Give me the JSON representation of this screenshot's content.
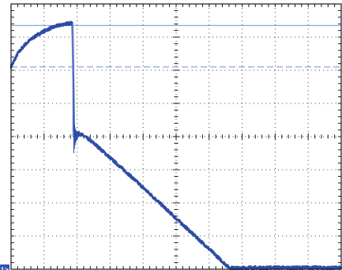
{
  "chart_data": {
    "type": "line",
    "title": "",
    "xlabel": "",
    "ylabel": "",
    "grid": true,
    "x_divisions": 10,
    "y_divisions": 8,
    "xlim": [
      0,
      10
    ],
    "ylim": [
      -1,
      7
    ],
    "colors": {
      "background": "#ffffff",
      "frame": "#1a1a1a",
      "grid_dots": "#3c3c3c",
      "trace": "#2d4da5",
      "cursor": "#7f9be0",
      "marker_fill": "#2f54b2",
      "marker_text": "#ffffff"
    },
    "series": [
      {
        "values_x": [
          0,
          0.2,
          0.4,
          0.6,
          0.8,
          1.0,
          1.2,
          1.4,
          1.6,
          1.8,
          1.86,
          1.88,
          1.9,
          1.93,
          1.98,
          2.05,
          2.2,
          2.4,
          2.6,
          2.8,
          3.0,
          3.5,
          4.0,
          4.5,
          5.0,
          5.5,
          6.0,
          6.5,
          6.6,
          6.8,
          6.95,
          7.2,
          7.6,
          8.0,
          8.5,
          9.0,
          9.5,
          10.0
        ],
        "values_y": [
          5.1,
          5.5,
          5.75,
          5.93,
          6.07,
          6.18,
          6.27,
          6.34,
          6.39,
          6.42,
          6.43,
          5.0,
          3.4,
          3.06,
          3.1,
          3.1,
          3.02,
          2.88,
          2.72,
          2.54,
          2.36,
          1.92,
          1.46,
          1.0,
          0.53,
          0.07,
          -0.39,
          -0.86,
          -0.95,
          -0.97,
          -0.97,
          -0.95,
          -0.96,
          -0.95,
          -0.96,
          -0.95,
          -0.96,
          -0.96
        ]
      }
    ],
    "cursors": [
      {
        "style": "solid",
        "y": 6.35
      },
      {
        "style": "dashed",
        "y": 5.1
      }
    ],
    "ground_marker": {
      "label": "1>",
      "y": -1
    }
  }
}
